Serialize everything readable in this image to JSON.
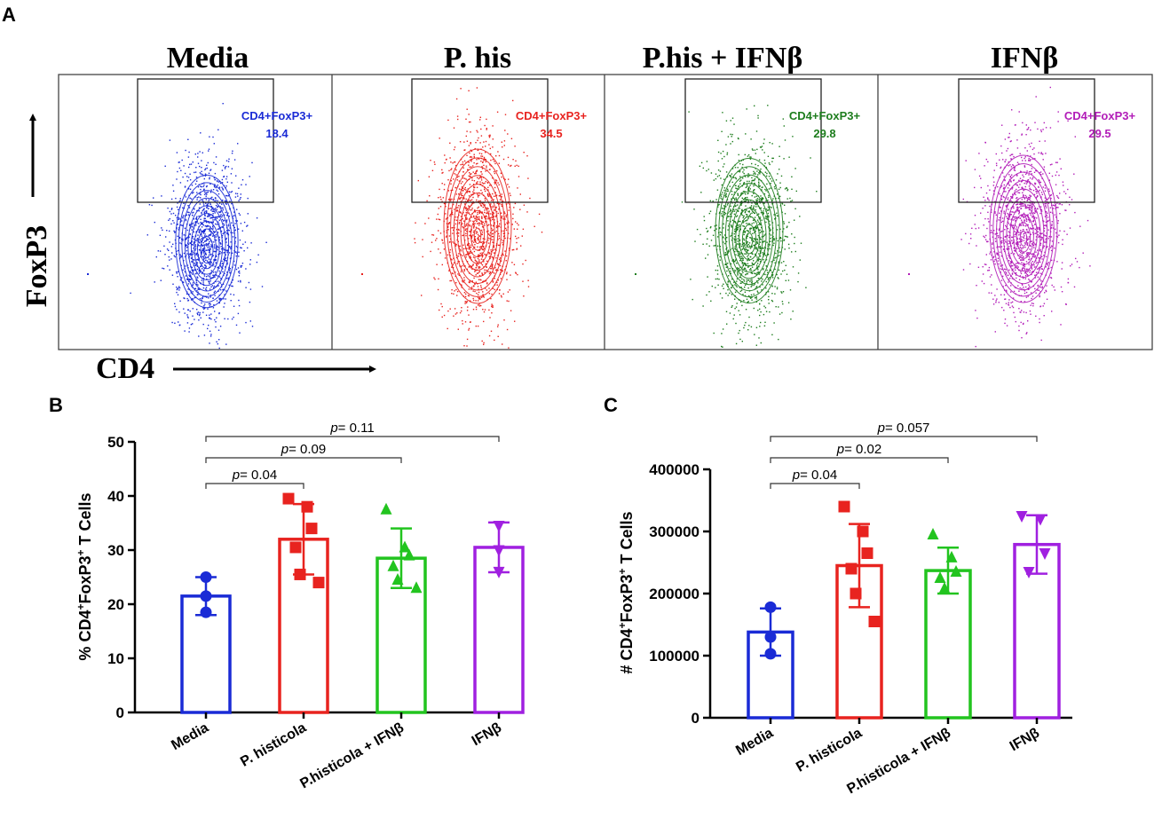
{
  "panel_a": {
    "letter": "A",
    "y_axis_label": "FoxP3",
    "x_axis_label": "CD4",
    "panels": [
      {
        "title": "Media",
        "gate_label": "CD4+FoxP3+",
        "gate_value": "18.4",
        "color": "#1a2bd6"
      },
      {
        "title": "P. his",
        "gate_label": "CD4+FoxP3+",
        "gate_value": "34.5",
        "color": "#e8231f"
      },
      {
        "title": "P.his + IFNβ",
        "gate_label": "CD4+FoxP3+",
        "gate_value": "29.8",
        "color": "#1d7d1d"
      },
      {
        "title": "IFNβ",
        "gate_label": "CD4+FoxP3+",
        "gate_value": "29.5",
        "color": "#b21db8"
      }
    ]
  },
  "chart_data": [
    {
      "panel": "B",
      "type": "bar",
      "ylabel_prefix": "% CD4",
      "ylabel_sup1": "+",
      "ylabel_mid": "FoxP3",
      "ylabel_sup2": "+",
      "ylabel_suffix": " T Cells",
      "ylim": [
        0,
        50
      ],
      "yticks": [
        0,
        10,
        20,
        30,
        40,
        50
      ],
      "ytick_labels": [
        "0",
        "10",
        "20",
        "30",
        "40",
        "50"
      ],
      "categories": [
        "Media",
        "P. histicola",
        "P.histicola + IFNβ",
        "IFNβ"
      ],
      "colors": [
        "#1a2bd6",
        "#e8231f",
        "#22c41f",
        "#a020e0"
      ],
      "markers": [
        "circle",
        "square",
        "triangle",
        "triangle-down"
      ],
      "means": [
        21.5,
        32,
        28.5,
        30.5
      ],
      "sd": [
        3.5,
        6.5,
        5.5,
        4.6
      ],
      "points": [
        [
          25,
          21.5,
          18.5
        ],
        [
          39.5,
          38,
          34,
          30.5,
          25.5,
          24
        ],
        [
          37.5,
          30.5,
          29,
          27,
          24.5,
          23
        ],
        [
          34.5,
          30,
          26
        ]
      ],
      "comparisons": [
        {
          "from": 0,
          "to": 1,
          "label": "p",
          "value": "= 0.04"
        },
        {
          "from": 0,
          "to": 2,
          "label": "p",
          "value": "= 0.09"
        },
        {
          "from": 0,
          "to": 3,
          "label": "p",
          "value": "= 0.11"
        }
      ]
    },
    {
      "panel": "C",
      "type": "bar",
      "ylabel_prefix": "# CD4",
      "ylabel_sup1": "+",
      "ylabel_mid": "FoxP3",
      "ylabel_sup2": "+",
      "ylabel_suffix": " T Cells",
      "ylim": [
        0,
        400000
      ],
      "yticks": [
        0,
        100000,
        200000,
        300000,
        400000
      ],
      "ytick_labels": [
        "0",
        "100000",
        "200000",
        "300000",
        "400000"
      ],
      "categories": [
        "Media",
        "P. histicola",
        "P.histicola + IFNβ",
        "IFNβ"
      ],
      "colors": [
        "#1a2bd6",
        "#e8231f",
        "#22c41f",
        "#a020e0"
      ],
      "markers": [
        "circle",
        "square",
        "triangle",
        "triangle-down"
      ],
      "means": [
        138000,
        245000,
        237000,
        279000
      ],
      "sd": [
        38000,
        67000,
        37000,
        47000
      ],
      "points": [
        [
          178000,
          130000,
          103000
        ],
        [
          340000,
          300000,
          265000,
          240000,
          200000,
          155000
        ],
        [
          295000,
          258000,
          235000,
          225000,
          208000
        ],
        [
          325000,
          320000,
          265000,
          235000
        ]
      ],
      "comparisons": [
        {
          "from": 0,
          "to": 1,
          "label": "p",
          "value": "= 0.04"
        },
        {
          "from": 0,
          "to": 2,
          "label": "p",
          "value": "= 0.02"
        },
        {
          "from": 0,
          "to": 3,
          "label": "p",
          "value": "= 0.057"
        }
      ]
    }
  ]
}
